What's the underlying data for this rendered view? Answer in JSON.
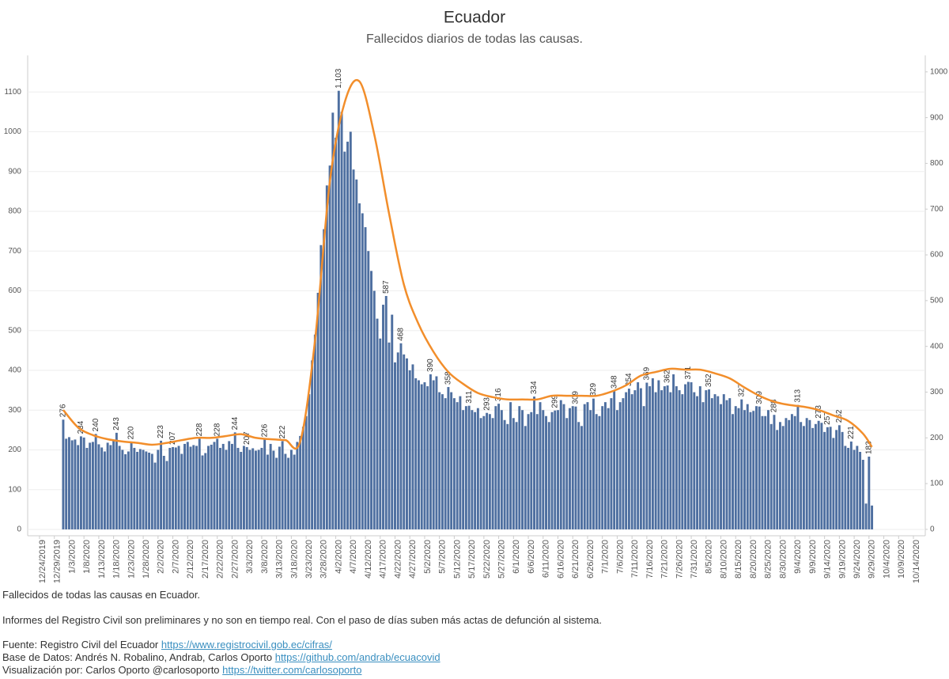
{
  "chart_data": {
    "type": "bar",
    "title": "Ecuador",
    "subtitle": "Fallecidos diarios de todas las causas.",
    "xlim": [
      "12/20/2019",
      "10/18/2020"
    ],
    "xticks": [
      "12/24/2019",
      "12/29/2019",
      "1/3/2020",
      "1/8/2020",
      "1/13/2020",
      "1/18/2020",
      "1/23/2020",
      "1/28/2020",
      "2/2/2020",
      "2/7/2020",
      "2/12/2020",
      "2/17/2020",
      "2/22/2020",
      "2/27/2020",
      "3/3/2020",
      "3/8/2020",
      "3/13/2020",
      "3/18/2020",
      "3/23/2020",
      "3/28/2020",
      "4/2/2020",
      "4/7/2020",
      "4/12/2020",
      "4/17/2020",
      "4/22/2020",
      "4/27/2020",
      "5/2/2020",
      "5/7/2020",
      "5/12/2020",
      "5/17/2020",
      "5/22/2020",
      "5/27/2020",
      "6/1/2020",
      "6/6/2020",
      "6/11/2020",
      "6/16/2020",
      "6/21/2020",
      "6/26/2020",
      "7/1/2020",
      "7/6/2020",
      "7/11/2020",
      "7/16/2020",
      "7/21/2020",
      "7/26/2020",
      "7/31/2020",
      "8/5/2020",
      "8/10/2020",
      "8/15/2020",
      "8/20/2020",
      "8/25/2020",
      "8/30/2020",
      "9/4/2020",
      "9/9/2020",
      "9/14/2020",
      "9/19/2020",
      "9/24/2020",
      "9/29/2020",
      "10/4/2020",
      "10/9/2020",
      "10/14/2020"
    ],
    "ylim": [
      -16,
      1192
    ],
    "yticks": [
      0,
      100,
      200,
      300,
      400,
      500,
      600,
      700,
      800,
      900,
      1000,
      1100
    ],
    "y2lim": [
      -14,
      1036
    ],
    "y2ticks": [
      0,
      100,
      200,
      300,
      400,
      500,
      600,
      700,
      800,
      900,
      1000
    ],
    "grid": true,
    "x": [
      "1/1/2020",
      "1/2/2020",
      "1/3/2020",
      "1/4/2020",
      "1/5/2020",
      "1/6/2020",
      "1/7/2020",
      "1/8/2020",
      "1/9/2020",
      "1/10/2020",
      "1/11/2020",
      "1/12/2020",
      "1/13/2020",
      "1/14/2020",
      "1/15/2020",
      "1/16/2020",
      "1/17/2020",
      "1/18/2020",
      "1/19/2020",
      "1/20/2020",
      "1/21/2020",
      "1/22/2020",
      "1/23/2020",
      "1/24/2020",
      "1/25/2020",
      "1/26/2020",
      "1/27/2020",
      "1/28/2020",
      "1/29/2020",
      "1/30/2020",
      "1/31/2020",
      "2/1/2020",
      "2/2/2020",
      "2/3/2020",
      "2/4/2020",
      "2/5/2020",
      "2/6/2020",
      "2/7/2020",
      "2/8/2020",
      "2/9/2020",
      "2/10/2020",
      "2/11/2020",
      "2/12/2020",
      "2/13/2020",
      "2/14/2020",
      "2/15/2020",
      "2/16/2020",
      "2/17/2020",
      "2/18/2020",
      "2/19/2020",
      "2/20/2020",
      "2/21/2020",
      "2/22/2020",
      "2/23/2020",
      "2/24/2020",
      "2/25/2020",
      "2/26/2020",
      "2/27/2020",
      "2/28/2020",
      "2/29/2020",
      "3/1/2020",
      "3/2/2020",
      "3/3/2020",
      "3/4/2020",
      "3/5/2020",
      "3/6/2020",
      "3/7/2020",
      "3/8/2020",
      "3/9/2020",
      "3/10/2020",
      "3/11/2020",
      "3/12/2020",
      "3/13/2020",
      "3/14/2020",
      "3/15/2020",
      "3/16/2020",
      "3/17/2020",
      "3/18/2020",
      "3/19/2020",
      "3/20/2020",
      "3/21/2020",
      "3/22/2020",
      "3/23/2020",
      "3/24/2020",
      "3/25/2020",
      "3/26/2020",
      "3/27/2020",
      "3/28/2020",
      "3/29/2020",
      "3/30/2020",
      "3/31/2020",
      "4/1/2020",
      "4/2/2020",
      "4/3/2020",
      "4/4/2020",
      "4/5/2020",
      "4/6/2020",
      "4/7/2020",
      "4/8/2020",
      "4/9/2020",
      "4/10/2020",
      "4/11/2020",
      "4/12/2020",
      "4/13/2020",
      "4/14/2020",
      "4/15/2020",
      "4/16/2020",
      "4/17/2020",
      "4/18/2020",
      "4/19/2020",
      "4/20/2020",
      "4/21/2020",
      "4/22/2020",
      "4/23/2020",
      "4/24/2020",
      "4/25/2020",
      "4/26/2020",
      "4/27/2020",
      "4/28/2020",
      "4/29/2020",
      "4/30/2020",
      "5/1/2020",
      "5/2/2020",
      "5/3/2020",
      "5/4/2020",
      "5/5/2020",
      "5/6/2020",
      "5/7/2020",
      "5/8/2020",
      "5/9/2020",
      "5/10/2020",
      "5/11/2020",
      "5/12/2020",
      "5/13/2020",
      "5/14/2020",
      "5/15/2020",
      "5/16/2020",
      "5/17/2020",
      "5/18/2020",
      "5/19/2020",
      "5/20/2020",
      "5/21/2020",
      "5/22/2020",
      "5/23/2020",
      "5/24/2020",
      "5/25/2020",
      "5/26/2020",
      "5/27/2020",
      "5/28/2020",
      "5/29/2020",
      "5/30/2020",
      "5/31/2020",
      "6/1/2020",
      "6/2/2020",
      "6/3/2020",
      "6/4/2020",
      "6/5/2020",
      "6/6/2020",
      "6/7/2020",
      "6/8/2020",
      "6/9/2020",
      "6/10/2020",
      "6/11/2020",
      "6/12/2020",
      "6/13/2020",
      "6/14/2020",
      "6/15/2020",
      "6/16/2020",
      "6/17/2020",
      "6/18/2020",
      "6/19/2020",
      "6/20/2020",
      "6/21/2020",
      "6/22/2020",
      "6/23/2020",
      "6/24/2020",
      "6/25/2020",
      "6/26/2020",
      "6/27/2020",
      "6/28/2020",
      "6/29/2020",
      "6/30/2020",
      "7/1/2020",
      "7/2/2020",
      "7/3/2020",
      "7/4/2020",
      "7/5/2020",
      "7/6/2020",
      "7/7/2020",
      "7/8/2020",
      "7/9/2020",
      "7/10/2020",
      "7/11/2020",
      "7/12/2020",
      "7/13/2020",
      "7/14/2020",
      "7/15/2020",
      "7/16/2020",
      "7/17/2020",
      "7/18/2020",
      "7/19/2020",
      "7/20/2020",
      "7/21/2020",
      "7/22/2020",
      "7/23/2020",
      "7/24/2020",
      "7/25/2020",
      "7/26/2020",
      "7/27/2020",
      "7/28/2020",
      "7/29/2020",
      "7/30/2020",
      "7/31/2020",
      "8/1/2020",
      "8/2/2020",
      "8/3/2020",
      "8/4/2020",
      "8/5/2020",
      "8/6/2020",
      "8/7/2020",
      "8/8/2020",
      "8/9/2020",
      "8/10/2020",
      "8/11/2020",
      "8/12/2020",
      "8/13/2020",
      "8/14/2020",
      "8/15/2020",
      "8/16/2020",
      "8/17/2020",
      "8/18/2020",
      "8/19/2020",
      "8/20/2020",
      "8/21/2020",
      "8/22/2020",
      "8/23/2020",
      "8/24/2020",
      "8/25/2020",
      "8/26/2020",
      "8/27/2020",
      "8/28/2020",
      "8/29/2020",
      "8/30/2020",
      "8/31/2020",
      "9/1/2020",
      "9/2/2020",
      "9/3/2020",
      "9/4/2020",
      "9/5/2020",
      "9/6/2020",
      "9/7/2020",
      "9/8/2020",
      "9/9/2020",
      "9/10/2020",
      "9/11/2020",
      "9/12/2020",
      "9/13/2020",
      "9/14/2020",
      "9/15/2020",
      "9/16/2020",
      "9/17/2020",
      "9/18/2020",
      "9/19/2020",
      "9/20/2020",
      "9/21/2020",
      "9/22/2020",
      "9/23/2020",
      "9/24/2020",
      "9/25/2020",
      "9/26/2020",
      "9/27/2020",
      "9/28/2020",
      "9/29/2020",
      "9/30/2020"
    ],
    "color": "#4e6fa0",
    "values": [
      276,
      228,
      232,
      224,
      226,
      212,
      234,
      231,
      205,
      218,
      220,
      240,
      214,
      206,
      196,
      218,
      212,
      226,
      243,
      210,
      200,
      189,
      196,
      220,
      205,
      195,
      202,
      200,
      196,
      193,
      190,
      168,
      200,
      223,
      185,
      172,
      205,
      207,
      206,
      210,
      190,
      215,
      220,
      208,
      212,
      210,
      228,
      186,
      192,
      210,
      213,
      220,
      228,
      205,
      215,
      200,
      222,
      215,
      244,
      205,
      195,
      210,
      207,
      200,
      204,
      198,
      200,
      205,
      226,
      188,
      215,
      198,
      180,
      208,
      222,
      190,
      180,
      200,
      188,
      220,
      235,
      258,
      285,
      340,
      425,
      490,
      595,
      715,
      755,
      865,
      915,
      1048,
      985,
      1103,
      1050,
      950,
      975,
      1000,
      905,
      880,
      820,
      795,
      760,
      700,
      650,
      600,
      530,
      480,
      565,
      587,
      470,
      540,
      420,
      445,
      468,
      440,
      430,
      400,
      415,
      380,
      375,
      365,
      370,
      360,
      390,
      375,
      385,
      345,
      340,
      330,
      358,
      345,
      330,
      320,
      335,
      300,
      310,
      311,
      300,
      295,
      305,
      280,
      285,
      293,
      290,
      280,
      310,
      316,
      300,
      275,
      265,
      320,
      280,
      270,
      310,
      300,
      260,
      290,
      295,
      334,
      290,
      320,
      300,
      285,
      270,
      295,
      299,
      300,
      325,
      315,
      280,
      305,
      310,
      309,
      270,
      260,
      315,
      320,
      300,
      329,
      290,
      285,
      310,
      320,
      305,
      330,
      348,
      300,
      320,
      330,
      345,
      354,
      340,
      350,
      370,
      355,
      310,
      369,
      360,
      380,
      345,
      375,
      350,
      360,
      362,
      345,
      390,
      360,
      350,
      340,
      365,
      371,
      370,
      345,
      335,
      360,
      320,
      350,
      352,
      330,
      340,
      335,
      315,
      340,
      325,
      330,
      290,
      310,
      305,
      327,
      300,
      315,
      295,
      298,
      310,
      309,
      285,
      285,
      300,
      265,
      288,
      250,
      270,
      260,
      280,
      275,
      290,
      285,
      313,
      270,
      260,
      280,
      275,
      255,
      265,
      273,
      268,
      245,
      257,
      258,
      230,
      250,
      262,
      245,
      210,
      205,
      221,
      200,
      210,
      195,
      175,
      65,
      183,
      60
    ],
    "value_labels": [
      "276",
      null,
      null,
      null,
      null,
      null,
      "234",
      null,
      null,
      null,
      null,
      "240",
      null,
      null,
      null,
      null,
      null,
      null,
      "243",
      null,
      null,
      null,
      null,
      "220",
      null,
      null,
      null,
      null,
      null,
      null,
      null,
      null,
      null,
      "223",
      null,
      null,
      null,
      "207",
      null,
      null,
      null,
      null,
      null,
      null,
      null,
      null,
      "228",
      null,
      null,
      null,
      null,
      null,
      "228",
      null,
      null,
      null,
      null,
      null,
      "244",
      null,
      null,
      null,
      "207",
      null,
      null,
      null,
      null,
      null,
      "226",
      null,
      null,
      null,
      null,
      null,
      "222",
      null,
      null,
      null,
      null,
      null,
      null,
      null,
      null,
      null,
      null,
      null,
      null,
      null,
      null,
      null,
      null,
      null,
      null,
      "1,103",
      null,
      null,
      null,
      null,
      null,
      null,
      null,
      null,
      null,
      null,
      null,
      null,
      null,
      null,
      null,
      "587",
      null,
      null,
      null,
      null,
      "468",
      null,
      null,
      null,
      null,
      null,
      null,
      null,
      null,
      null,
      "390",
      null,
      null,
      null,
      null,
      null,
      "358",
      null,
      null,
      null,
      null,
      null,
      null,
      "311",
      null,
      null,
      null,
      null,
      null,
      "293",
      null,
      null,
      null,
      "316",
      null,
      null,
      null,
      null,
      null,
      null,
      null,
      null,
      null,
      null,
      null,
      "334",
      null,
      null,
      null,
      null,
      null,
      null,
      "299",
      null,
      null,
      null,
      null,
      null,
      null,
      "309",
      null,
      null,
      null,
      null,
      null,
      "329",
      null,
      null,
      null,
      null,
      null,
      null,
      "348",
      null,
      null,
      null,
      null,
      "354",
      null,
      null,
      null,
      null,
      null,
      "369",
      null,
      null,
      null,
      null,
      null,
      null,
      "362",
      null,
      null,
      null,
      null,
      null,
      null,
      "371",
      null,
      null,
      null,
      null,
      null,
      null,
      "352",
      null,
      null,
      null,
      null,
      null,
      null,
      null,
      null,
      null,
      null,
      "327",
      null,
      null,
      null,
      null,
      null,
      "309",
      null,
      null,
      null,
      null,
      "288",
      null,
      null,
      null,
      null,
      null,
      null,
      null,
      "313",
      null,
      null,
      null,
      null,
      null,
      null,
      "273",
      null,
      null,
      "257",
      null,
      null,
      null,
      "262",
      null,
      null,
      null,
      "221",
      null,
      null,
      null,
      null,
      null,
      "183",
      null
    ],
    "line": {
      "color": "#f28e2b",
      "axis": "y2",
      "x": [
        "1/1/2020",
        "1/6/2020",
        "1/11/2020",
        "1/16/2020",
        "1/21/2020",
        "1/26/2020",
        "1/31/2020",
        "2/5/2020",
        "2/10/2020",
        "2/15/2020",
        "2/20/2020",
        "2/25/2020",
        "3/1/2020",
        "3/6/2020",
        "3/11/2020",
        "3/16/2020",
        "3/21/2020",
        "3/26/2020",
        "3/31/2020",
        "4/5/2020",
        "4/10/2020",
        "4/15/2020",
        "4/20/2020",
        "4/25/2020",
        "4/30/2020",
        "5/5/2020",
        "5/10/2020",
        "5/15/2020",
        "5/20/2020",
        "5/25/2020",
        "5/30/2020",
        "6/4/2020",
        "6/9/2020",
        "6/14/2020",
        "6/19/2020",
        "6/24/2020",
        "6/29/2020",
        "7/4/2020",
        "7/9/2020",
        "7/14/2020",
        "7/19/2020",
        "7/24/2020",
        "7/29/2020",
        "8/3/2020",
        "8/8/2020",
        "8/13/2020",
        "8/18/2020",
        "8/23/2020",
        "8/28/2020",
        "9/2/2020",
        "9/7/2020",
        "9/12/2020",
        "9/17/2020",
        "9/22/2020",
        "9/27/2020",
        "9/30/2020"
      ],
      "values": [
        261,
        223,
        206,
        197,
        192,
        189,
        185,
        189,
        195,
        200,
        200,
        204,
        208,
        200,
        197,
        195,
        192,
        413,
        760,
        933,
        979,
        863,
        690,
        535,
        448,
        388,
        344,
        318,
        298,
        289,
        284,
        284,
        284,
        292,
        292,
        292,
        292,
        301,
        315,
        336,
        344,
        351,
        349,
        349,
        341,
        330,
        310,
        292,
        279,
        272,
        268,
        261,
        249,
        237,
        209,
        180
      ]
    }
  },
  "footer": {
    "note": "Fallecidos de todas las causas en Ecuador.",
    "disclaimer": "Informes del Registro Civil son preliminares y no son en tiempo real. Con el paso de días suben más actas de defunción al sistema.",
    "credits": [
      {
        "text": "Fuente: Registro Civil del Ecuador",
        "link": "https://www.registrocivil.gob.ec/cifras/"
      },
      {
        "text": "Base de Datos: Andrés N. Robalino, Andrab, Carlos Oporto",
        "link": "https://github.com/andrab/ecuacovid"
      },
      {
        "text": "Visualización por: Carlos Oporto @carlosoporto",
        "link": "https://twitter.com/carlosoporto"
      }
    ]
  }
}
